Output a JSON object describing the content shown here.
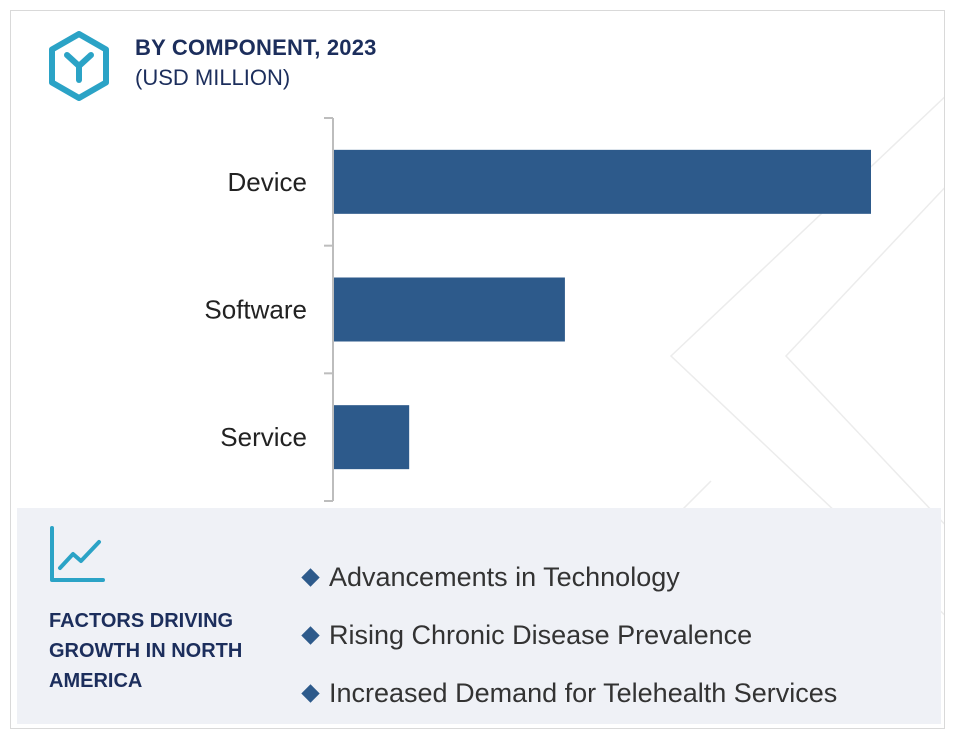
{
  "header": {
    "title": "BY COMPONENT, 2023",
    "subtitle": "(USD MILLION)",
    "logo_icon": "hexagon-y-logo-icon"
  },
  "chart_data": {
    "type": "bar",
    "orientation": "horizontal",
    "categories": [
      "Device",
      "Software",
      "Service"
    ],
    "values": [
      100,
      43,
      14
    ],
    "title": "BY COMPONENT, 2023",
    "subtitle": "(USD MILLION)",
    "xlabel": "",
    "ylabel": "",
    "xlim": [
      0,
      100
    ],
    "grid": false,
    "legend": "none",
    "bar_color": "#2d5a8b"
  },
  "factors": {
    "icon": "line-chart-trend-icon",
    "title": "FACTORS DRIVING GROWTH IN NORTH AMERICA",
    "items": [
      "Advancements in Technology",
      "Rising Chronic Disease Prevalence",
      "Increased Demand for Telehealth Services"
    ]
  },
  "colors": {
    "accent_teal": "#2ba3c6",
    "title_navy": "#1c2e5c",
    "bar_blue": "#2d5a8b",
    "panel_bg": "#eff1f6"
  }
}
